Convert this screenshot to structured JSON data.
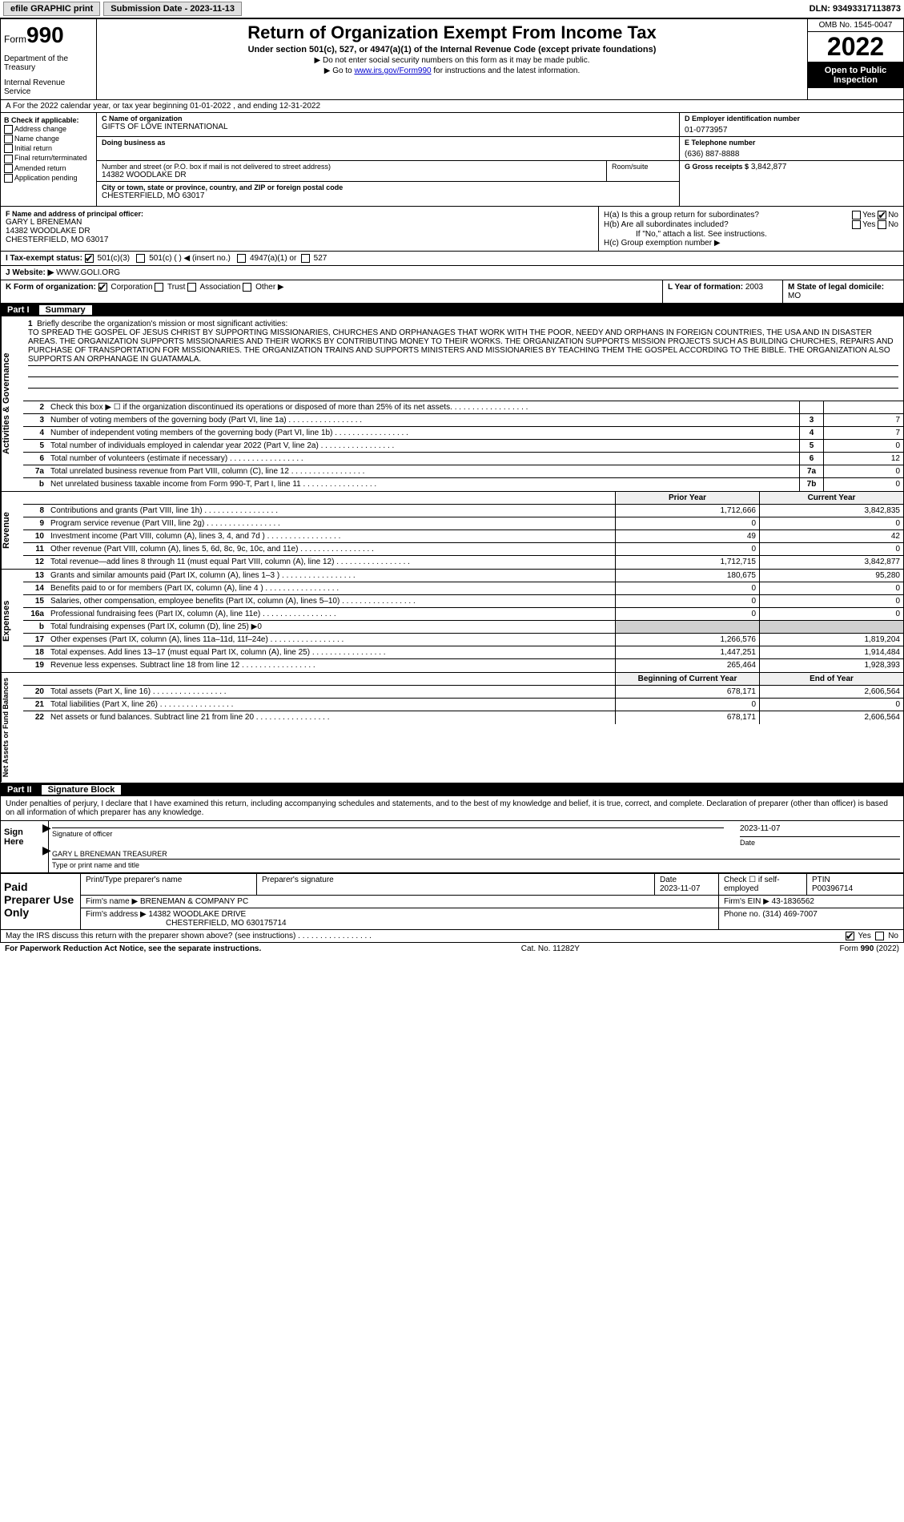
{
  "top": {
    "efile": "efile GRAPHIC print",
    "submission_label": "Submission Date - 2023-11-13",
    "dln": "DLN: 93493317113873"
  },
  "header": {
    "form_prefix": "Form",
    "form_num": "990",
    "dept": "Department of the Treasury",
    "irs": "Internal Revenue Service",
    "title": "Return of Organization Exempt From Income Tax",
    "subtitle": "Under section 501(c), 527, or 4947(a)(1) of the Internal Revenue Code (except private foundations)",
    "note1": "▶ Do not enter social security numbers on this form as it may be made public.",
    "note2_pre": "▶ Go to ",
    "note2_link": "www.irs.gov/Form990",
    "note2_post": " for instructions and the latest information.",
    "omb": "OMB No. 1545-0047",
    "year": "2022",
    "inspection": "Open to Public Inspection"
  },
  "row_a": "A For the 2022 calendar year, or tax year beginning 01-01-2022   , and ending 12-31-2022",
  "col_b": {
    "header": "B Check if applicable:",
    "items": [
      "Address change",
      "Name change",
      "Initial return",
      "Final return/terminated",
      "Amended return",
      "Application pending"
    ]
  },
  "org": {
    "c_label": "C Name of organization",
    "name": "GIFTS OF LOVE INTERNATIONAL",
    "dba_label": "Doing business as",
    "addr_label": "Number and street (or P.O. box if mail is not delivered to street address)",
    "room_label": "Room/suite",
    "street": "14382 WOODLAKE DR",
    "city_label": "City or town, state or province, country, and ZIP or foreign postal code",
    "city": "CHESTERFIELD, MO  63017"
  },
  "col_d": {
    "d_label": "D Employer identification number",
    "ein": "01-0773957",
    "e_label": "E Telephone number",
    "phone": "(636) 887-8888",
    "g_label": "G Gross receipts $",
    "g_val": "3,842,877"
  },
  "f": {
    "label": "F  Name and address of principal officer:",
    "name": "GARY L BRENEMAN",
    "addr1": "14382 WOODLAKE DR",
    "addr2": "CHESTERFIELD, MO  63017"
  },
  "h": {
    "ha_label": "H(a)  Is this a group return for subordinates?",
    "hb_label": "H(b)  Are all subordinates included?",
    "hb_note": "If \"No,\" attach a list. See instructions.",
    "hc_label": "H(c)  Group exemption number ▶",
    "yes": "Yes",
    "no": "No"
  },
  "row_i": {
    "label": "I   Tax-exempt status:",
    "opts": [
      "501(c)(3)",
      "501(c) (  ) ◀ (insert no.)",
      "4947(a)(1) or",
      "527"
    ]
  },
  "row_j": {
    "label": "J  Website: ▶",
    "val": "WWW.GOLI.ORG"
  },
  "row_k": {
    "label": "K Form of organization:",
    "opts": [
      "Corporation",
      "Trust",
      "Association",
      "Other ▶"
    ],
    "l_label": "L Year of formation:",
    "l_val": "2003",
    "m_label": "M State of legal domicile:",
    "m_val": "MO"
  },
  "part1": {
    "num": "Part I",
    "title": "Summary"
  },
  "mission": {
    "num": "1",
    "label": "Briefly describe the organization's mission or most significant activities:",
    "text": "TO SPREAD THE GOSPEL OF JESUS CHRIST BY SUPPORTING MISSIONARIES, CHURCHES AND ORPHANAGES THAT WORK WITH THE POOR, NEEDY AND ORPHANS IN FOREIGN COUNTRIES, THE USA AND IN DISASTER AREAS. THE ORGANIZATION SUPPORTS MISSIONARIES AND THEIR WORKS BY CONTRIBUTING MONEY TO THEIR WORKS. THE ORGANIZATION SUPPORTS MISSION PROJECTS SUCH AS BUILDING CHURCHES, REPAIRS AND PURCHASE OF TRANSPORTATION FOR MISSIONARIES. THE ORGANIZATION TRAINS AND SUPPORTS MINISTERS AND MISSIONARIES BY TEACHING THEM THE GOSPEL ACCORDING TO THE BIBLE. THE ORGANIZATION ALSO SUPPORTS AN ORPHANAGE IN GUATAMALA."
  },
  "gov_rows": [
    {
      "n": "2",
      "label": "Check this box ▶ ☐  if the organization discontinued its operations or disposed of more than 25% of its net assets.",
      "box": "",
      "val": ""
    },
    {
      "n": "3",
      "label": "Number of voting members of the governing body (Part VI, line 1a)",
      "box": "3",
      "val": "7"
    },
    {
      "n": "4",
      "label": "Number of independent voting members of the governing body (Part VI, line 1b)",
      "box": "4",
      "val": "7"
    },
    {
      "n": "5",
      "label": "Total number of individuals employed in calendar year 2022 (Part V, line 2a)",
      "box": "5",
      "val": "0"
    },
    {
      "n": "6",
      "label": "Total number of volunteers (estimate if necessary)",
      "box": "6",
      "val": "12"
    },
    {
      "n": "7a",
      "label": "Total unrelated business revenue from Part VIII, column (C), line 12",
      "box": "7a",
      "val": "0"
    },
    {
      "n": "b",
      "label": "Net unrelated business taxable income from Form 990-T, Part I, line 11",
      "box": "7b",
      "val": "0"
    }
  ],
  "col_headers": {
    "prior": "Prior Year",
    "current": "Current Year"
  },
  "rev_rows": [
    {
      "n": "8",
      "label": "Contributions and grants (Part VIII, line 1h)",
      "p": "1,712,666",
      "c": "3,842,835"
    },
    {
      "n": "9",
      "label": "Program service revenue (Part VIII, line 2g)",
      "p": "0",
      "c": "0"
    },
    {
      "n": "10",
      "label": "Investment income (Part VIII, column (A), lines 3, 4, and 7d )",
      "p": "49",
      "c": "42"
    },
    {
      "n": "11",
      "label": "Other revenue (Part VIII, column (A), lines 5, 6d, 8c, 9c, 10c, and 11e)",
      "p": "0",
      "c": "0"
    },
    {
      "n": "12",
      "label": "Total revenue—add lines 8 through 11 (must equal Part VIII, column (A), line 12)",
      "p": "1,712,715",
      "c": "3,842,877"
    }
  ],
  "exp_rows": [
    {
      "n": "13",
      "label": "Grants and similar amounts paid (Part IX, column (A), lines 1–3 )",
      "p": "180,675",
      "c": "95,280"
    },
    {
      "n": "14",
      "label": "Benefits paid to or for members (Part IX, column (A), line 4 )",
      "p": "0",
      "c": "0"
    },
    {
      "n": "15",
      "label": "Salaries, other compensation, employee benefits (Part IX, column (A), lines 5–10)",
      "p": "0",
      "c": "0"
    },
    {
      "n": "16a",
      "label": "Professional fundraising fees (Part IX, column (A), line 11e)",
      "p": "0",
      "c": "0"
    },
    {
      "n": "b",
      "label": "Total fundraising expenses (Part IX, column (D), line 25) ▶0",
      "p": "",
      "c": "",
      "gray": true
    },
    {
      "n": "17",
      "label": "Other expenses (Part IX, column (A), lines 11a–11d, 11f–24e)",
      "p": "1,266,576",
      "c": "1,819,204"
    },
    {
      "n": "18",
      "label": "Total expenses. Add lines 13–17 (must equal Part IX, column (A), line 25)",
      "p": "1,447,251",
      "c": "1,914,484"
    },
    {
      "n": "19",
      "label": "Revenue less expenses. Subtract line 18 from line 12",
      "p": "265,464",
      "c": "1,928,393"
    }
  ],
  "net_headers": {
    "begin": "Beginning of Current Year",
    "end": "End of Year"
  },
  "net_rows": [
    {
      "n": "20",
      "label": "Total assets (Part X, line 16)",
      "p": "678,171",
      "c": "2,606,564"
    },
    {
      "n": "21",
      "label": "Total liabilities (Part X, line 26)",
      "p": "0",
      "c": "0"
    },
    {
      "n": "22",
      "label": "Net assets or fund balances. Subtract line 21 from line 20",
      "p": "678,171",
      "c": "2,606,564"
    }
  ],
  "part2": {
    "num": "Part II",
    "title": "Signature Block"
  },
  "sig": {
    "decl": "Under penalties of perjury, I declare that I have examined this return, including accompanying schedules and statements, and to the best of my knowledge and belief, it is true, correct, and complete. Declaration of preparer (other than officer) is based on all information of which preparer has any knowledge.",
    "sign_here": "Sign Here",
    "sig_officer": "Signature of officer",
    "date": "Date",
    "date_val": "2023-11-07",
    "officer": "GARY L BRENEMAN  TREASURER",
    "type_name": "Type or print name and title"
  },
  "paid": {
    "label": "Paid Preparer Use Only",
    "h1": "Print/Type preparer's name",
    "h2": "Preparer's signature",
    "h3": "Date",
    "h3v": "2023-11-07",
    "h4": "Check ☐ if self-employed",
    "h5": "PTIN",
    "h5v": "P00396714",
    "firm_label": "Firm's name    ▶",
    "firm": "BRENEMAN & COMPANY PC",
    "firm_ein_label": "Firm's EIN ▶",
    "firm_ein": "43-1836562",
    "firm_addr_label": "Firm's address ▶",
    "firm_addr": "14382 WOODLAKE DRIVE",
    "firm_city": "CHESTERFIELD, MO  630175714",
    "phone_label": "Phone no.",
    "phone": "(314) 469-7007"
  },
  "footer": {
    "discuss": "May the IRS discuss this return with the preparer shown above? (see instructions)",
    "yes": "Yes",
    "no": "No",
    "pra": "For Paperwork Reduction Act Notice, see the separate instructions.",
    "cat": "Cat. No. 11282Y",
    "form": "Form 990 (2022)"
  },
  "sides": {
    "gov": "Activities & Governance",
    "rev": "Revenue",
    "exp": "Expenses",
    "net": "Net Assets or Fund Balances"
  }
}
